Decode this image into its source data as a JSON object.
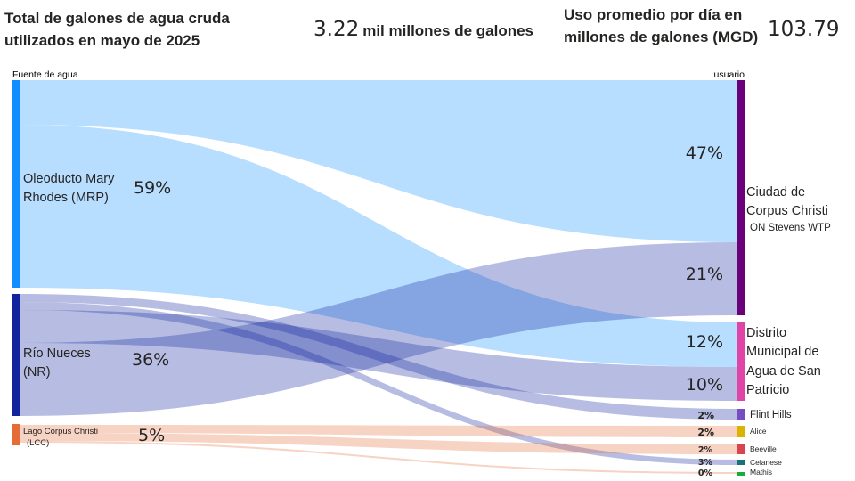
{
  "header": {
    "title": "Total de galones de agua cruda utilizados en mayo de 2025",
    "total_value": "3.22",
    "total_label": "mil millones de galones",
    "avg_label": "Uso promedio por día en millones de galones (MGD)",
    "avg_value": "103.79"
  },
  "sankey": {
    "source_header": "Fuente de agua",
    "target_header": "usuario",
    "sources": [
      {
        "line1": "Oleoducto Mary",
        "line2": "Rhodes (MRP)",
        "pct": "59%",
        "color": "#118DFF"
      },
      {
        "line1": "Río Nueces",
        "line2": "(NR)",
        "pct": "36%",
        "color": "#12239E"
      },
      {
        "line1": "Lago Corpus Christi",
        "line2": "(LCC)",
        "pct": "5%",
        "color": "#E66C37"
      }
    ],
    "targets": [
      {
        "line1": "Ciudad de",
        "line2": "Corpus Christi",
        "line3": "ON Stevens WTP",
        "pct_a": "47%",
        "pct_b": "21%",
        "color": "#6B007B"
      },
      {
        "line1": "Distrito",
        "line2": "Municipal de",
        "line3": "Agua de San",
        "line4": "Patricio",
        "pct_a": "12%",
        "pct_b": "10%",
        "color": "#E044A7"
      },
      {
        "label": "Flint Hills",
        "pct": "2%",
        "color": "#744EC2"
      },
      {
        "label": "Alice",
        "pct": "2%",
        "color": "#D9B300"
      },
      {
        "label": "Beeville",
        "pct": "2%",
        "color": "#D64550"
      },
      {
        "label": "Celanese",
        "pct": "3%",
        "color": "#197278"
      },
      {
        "label": "Mathis",
        "pct": "0%",
        "color": "#1AAB40"
      }
    ]
  }
}
